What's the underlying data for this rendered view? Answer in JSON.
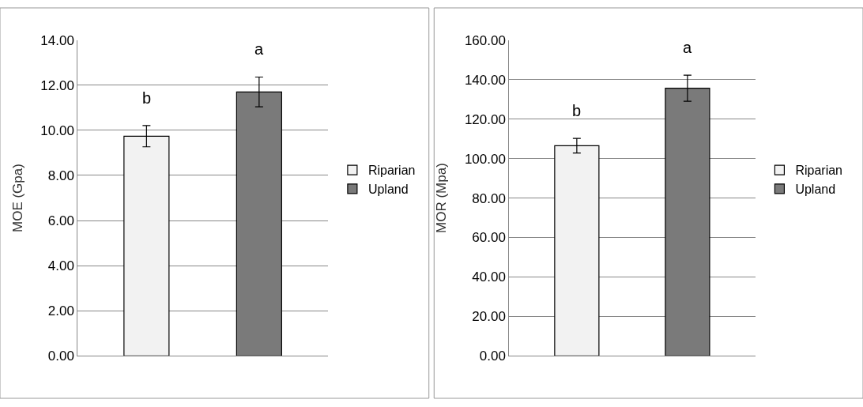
{
  "chart_data": [
    {
      "type": "bar",
      "ylabel": "MOE (Gpa)",
      "categories": [
        null
      ],
      "series": [
        {
          "name": "Riparian",
          "color": "#f2f2f2",
          "values": [
            9.74
          ],
          "errors": [
            0.47
          ]
        },
        {
          "name": "Upland",
          "color": "#7a7a7a",
          "values": [
            11.7
          ],
          "errors": [
            0.66
          ]
        }
      ],
      "ylim": [
        0,
        14
      ],
      "yticks": [
        {
          "value": 0,
          "label": "0.00"
        },
        {
          "value": 2,
          "label": "2.00"
        },
        {
          "value": 4,
          "label": "4.00"
        },
        {
          "value": 6,
          "label": "6.00"
        },
        {
          "value": 8,
          "label": "8.00"
        },
        {
          "value": 10,
          "label": "10.00"
        },
        {
          "value": 12,
          "label": "12.00"
        },
        {
          "value": 14,
          "label": "14.00"
        }
      ],
      "annotations": [
        "b",
        "a"
      ],
      "grid": "y",
      "legend": "right"
    },
    {
      "type": "bar",
      "ylabel": "MOR (Mpa)",
      "categories": [
        null
      ],
      "series": [
        {
          "name": "Riparian",
          "color": "#f2f2f2",
          "values": [
            106.5
          ],
          "errors": [
            3.7
          ]
        },
        {
          "name": "Upland",
          "color": "#7a7a7a",
          "values": [
            135.6
          ],
          "errors": [
            6.6
          ]
        }
      ],
      "ylim": [
        0,
        160
      ],
      "yticks": [
        {
          "value": 0,
          "label": "0.00"
        },
        {
          "value": 20,
          "label": "20.00"
        },
        {
          "value": 40,
          "label": "40.00"
        },
        {
          "value": 60,
          "label": "60.00"
        },
        {
          "value": 80,
          "label": "80.00"
        },
        {
          "value": 100,
          "label": "100.00"
        },
        {
          "value": 120,
          "label": "120.00"
        },
        {
          "value": 140,
          "label": "140.00"
        },
        {
          "value": 160,
          "label": "160.00"
        }
      ],
      "annotations": [
        "b",
        "a"
      ],
      "grid": "y",
      "legend": "right"
    }
  ]
}
